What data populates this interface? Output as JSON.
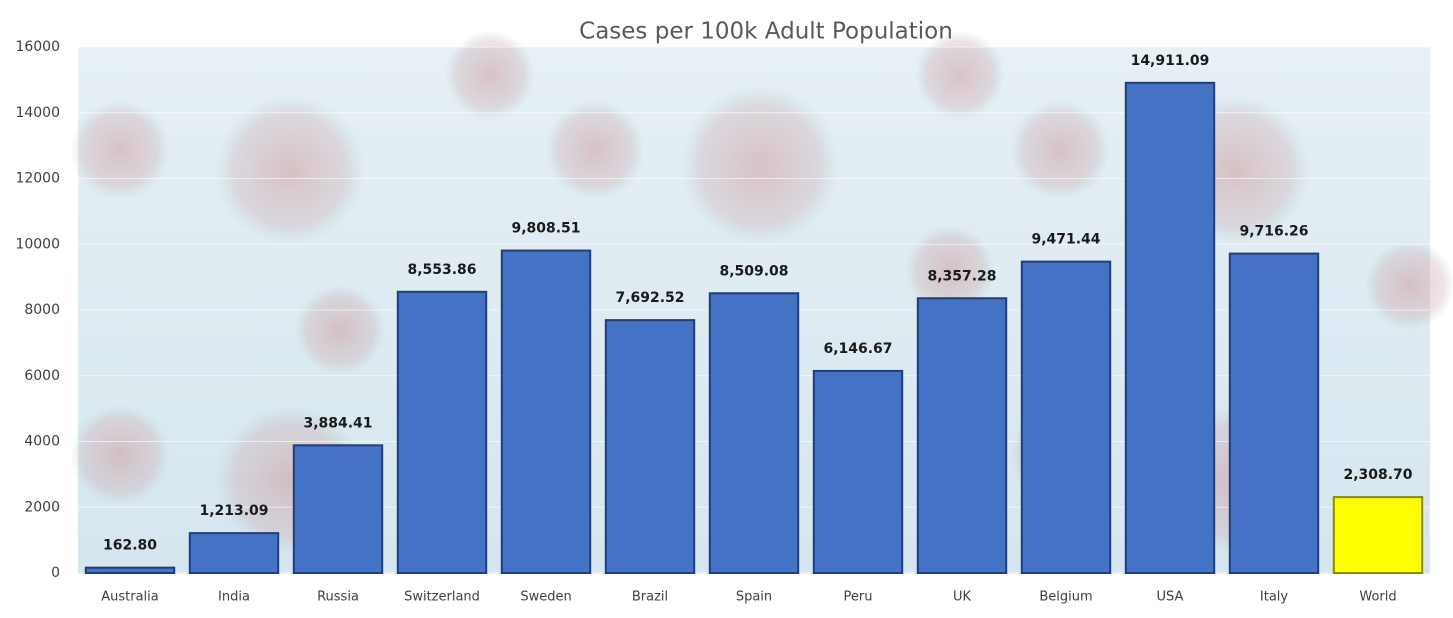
{
  "chart_data": {
    "type": "bar",
    "title": "Cases per 100k Adult Population",
    "categories": [
      "Australia",
      "India",
      "Russia",
      "Switzerland",
      "Sweden",
      "Brazil",
      "Spain",
      "Peru",
      "UK",
      "Belgium",
      "USA",
      "Italy",
      "World"
    ],
    "values": [
      162.8,
      1213.09,
      3884.41,
      8553.86,
      9808.51,
      7692.52,
      8509.08,
      6146.67,
      8357.28,
      9471.44,
      14911.09,
      9716.26,
      2308.7
    ],
    "value_labels": [
      "162.80",
      "1,213.09",
      "3,884.41",
      "8,553.86",
      "9,808.51",
      "7,692.52",
      "8,509.08",
      "6,146.67",
      "8,357.28",
      "9,471.44",
      "14,911.09",
      "9,716.26",
      "2,308.70"
    ],
    "colors": [
      "#4472c4",
      "#4472c4",
      "#4472c4",
      "#4472c4",
      "#4472c4",
      "#4472c4",
      "#4472c4",
      "#4472c4",
      "#4472c4",
      "#4472c4",
      "#4472c4",
      "#4472c4",
      "#ffff00"
    ],
    "ylim": [
      0,
      16000
    ],
    "yticks": [
      0,
      2000,
      4000,
      6000,
      8000,
      10000,
      12000,
      14000,
      16000
    ],
    "grid": true
  }
}
